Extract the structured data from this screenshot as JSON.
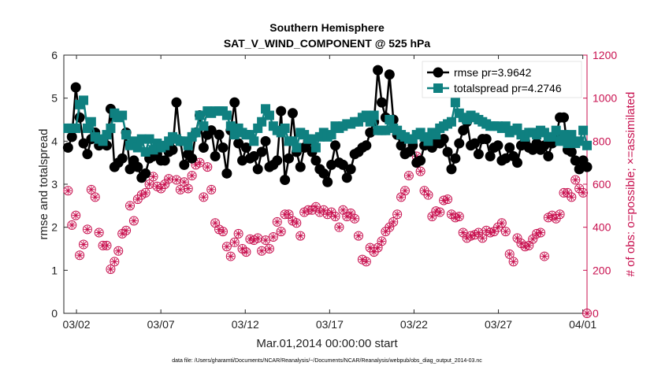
{
  "chart_data": {
    "type": "line",
    "title": "Southern Hemisphere",
    "subtitle": "SAT_V_WIND_COMPONENT @ 525 hPa",
    "xlabel": "Mar.01,2014 00:00:00 start",
    "ylabel": "rmse and totalspread",
    "y2label": "# of obs: o=possible; ×=assimilated",
    "footnote": "data file: /Users/gharamti/Documents/NCAR/Reanalysis/~/Documents/NCAR/Reanalysis/webpub/obs_diag_output_2014-03.nc",
    "xlim": [
      1.25,
      32.25
    ],
    "ylim": [
      0,
      6
    ],
    "y2lim": [
      0,
      1200
    ],
    "xticks": [
      {
        "x": 2,
        "label": "03/02"
      },
      {
        "x": 7,
        "label": "03/07"
      },
      {
        "x": 12,
        "label": "03/12"
      },
      {
        "x": 17,
        "label": "03/17"
      },
      {
        "x": 22,
        "label": "03/22"
      },
      {
        "x": 27,
        "label": "03/27"
      },
      {
        "x": 32,
        "label": "04/01"
      }
    ],
    "yticks": [
      "0",
      "1",
      "2",
      "3",
      "4",
      "5",
      "6"
    ],
    "y2ticks": [
      "0",
      "200",
      "400",
      "600",
      "800",
      "1000",
      "1200"
    ],
    "legend": {
      "position": "top-right",
      "entries": [
        "rmse pr=3.9642",
        "totalspread pr=4.2746"
      ]
    },
    "colors": {
      "rmse": "#000000",
      "totalspread": "#0f8080",
      "obs": "#c8104f"
    },
    "series": [
      {
        "name": "rmse",
        "values": [
          3.85,
          4.1,
          5.25,
          4.55,
          3.95,
          3.7,
          4.05,
          4.2,
          3.9,
          3.95,
          3.9,
          4.75,
          3.4,
          3.5,
          3.6,
          4.2,
          3.35,
          3.55,
          3.4,
          3.15,
          3.25,
          3.6,
          3.65,
          3.7,
          3.55,
          3.55,
          3.75,
          3.8,
          4.9,
          4.0,
          3.45,
          3.7,
          3.6,
          4.2,
          4.6,
          3.85,
          4.15,
          4.25,
          3.65,
          4.15,
          3.85,
          3.25,
          4.25,
          4.9,
          3.95,
          3.55,
          3.85,
          3.6,
          3.65,
          3.35,
          3.75,
          4.0,
          3.4,
          3.45,
          3.55,
          4.7,
          3.1,
          3.6,
          4.65,
          3.75,
          3.4,
          3.85,
          4.0,
          3.75,
          3.55,
          3.35,
          3.25,
          3.05,
          3.45,
          3.9,
          3.5,
          3.45,
          3.15,
          3.35,
          3.7,
          3.75,
          3.85,
          3.9,
          4.2,
          4.45,
          5.65,
          4.9,
          4.55,
          5.55,
          4.5,
          4.15,
          3.9,
          3.7,
          3.75,
          3.9,
          3.5,
          3.55,
          3.9,
          4.05,
          3.85,
          3.95,
          3.95,
          4.05,
          3.75,
          3.35,
          3.6,
          3.95,
          4.25,
          4.45,
          3.9,
          3.95,
          3.7,
          4.05,
          4.05,
          3.65,
          3.85,
          3.9,
          3.55,
          3.6,
          3.85,
          3.65,
          3.5,
          3.9,
          4.0,
          3.85,
          3.8,
          3.95,
          3.8,
          3.9,
          3.65,
          3.95,
          4.1,
          4.55,
          4.55,
          3.8,
          3.75,
          3.55,
          3.35,
          3.55,
          3.4
        ]
      },
      {
        "name": "totalspread",
        "values": [
          4.3,
          4.3,
          4.3,
          4.85,
          4.95,
          4.3,
          4.45,
          4.1,
          4.05,
          4.0,
          4.15,
          4.3,
          4.65,
          4.55,
          4.6,
          4.15,
          3.9,
          4.0,
          3.85,
          4.05,
          3.75,
          4.05,
          3.8,
          3.95,
          3.85,
          3.9,
          4.0,
          4.1,
          4.05,
          4.0,
          4.0,
          3.9,
          4.1,
          4.2,
          4.6,
          4.35,
          4.7,
          4.65,
          4.7,
          4.7,
          4.7,
          4.6,
          4.35,
          4.15,
          4.3,
          4.2,
          4.15,
          4.15,
          4.0,
          4.3,
          4.45,
          4.75,
          4.6,
          4.35,
          4.25,
          4.2,
          4.3,
          4.0,
          4.0,
          3.85,
          4.2,
          4.15,
          4.05,
          4.05,
          3.85,
          4.1,
          4.2,
          4.1,
          4.15,
          4.35,
          4.3,
          4.35,
          4.4,
          4.4,
          4.45,
          4.45,
          4.55,
          4.6,
          4.45,
          4.6,
          4.25,
          4.25,
          4.25,
          4.5,
          4.3,
          4.25,
          4.15,
          4.1,
          4.05,
          4.05,
          4.15,
          4.2,
          4.1,
          4.0,
          4.2,
          4.15,
          4.3,
          4.35,
          4.4,
          4.45,
          4.9,
          4.65,
          4.55,
          4.5,
          4.6,
          4.55,
          4.5,
          4.45,
          4.4,
          4.35,
          4.35,
          4.35,
          4.3,
          4.35,
          4.2,
          4.25,
          4.3,
          4.15,
          4.1,
          4.2,
          4.2,
          4.15,
          4.25,
          4.2,
          4.1,
          4.1,
          4.25,
          4.0,
          4.15,
          3.95,
          4.15,
          3.95,
          4.0,
          4.25,
          3.9
        ]
      },
      {
        "name": "possible_obs",
        "values": [
          570,
          410,
          455,
          270,
          320,
          390,
          575,
          540,
          375,
          315,
          315,
          205,
          240,
          290,
          370,
          385,
          500,
          430,
          530,
          550,
          560,
          600,
          635,
          590,
          580,
          600,
          625,
          820,
          620,
          575,
          610,
          580,
          640,
          690,
          700,
          540,
          680,
          575,
          420,
          390,
          380,
          310,
          265,
          330,
          370,
          300,
          285,
          345,
          340,
          350,
          290,
          340,
          300,
          355,
          425,
          380,
          460,
          460,
          430,
          420,
          360,
          470,
          480,
          480,
          495,
          470,
          480,
          460,
          470,
          450,
          400,
          480,
          450,
          465,
          440,
          360,
          250,
          240,
          305,
          285,
          305,
          335,
          380,
          400,
          425,
          460,
          540,
          570,
          640,
          790,
          730,
          660,
          570,
          550,
          450,
          475,
          470,
          525,
          530,
          460,
          445,
          450,
          375,
          350,
          360,
          365,
          375,
          350,
          385,
          375,
          380,
          400,
          420,
          380,
          275,
          240,
          350,
          325,
          310,
          315,
          345,
          370,
          375,
          265,
          445,
          455,
          440,
          460,
          560,
          560,
          540,
          620,
          580,
          560,
          0
        ]
      },
      {
        "name": "assimilated_obs",
        "values": [
          570,
          410,
          455,
          270,
          320,
          390,
          575,
          540,
          375,
          315,
          315,
          205,
          240,
          290,
          370,
          385,
          500,
          430,
          530,
          550,
          560,
          600,
          635,
          590,
          580,
          600,
          625,
          820,
          620,
          575,
          610,
          580,
          640,
          690,
          700,
          540,
          680,
          575,
          420,
          390,
          380,
          310,
          265,
          330,
          370,
          300,
          285,
          345,
          340,
          350,
          290,
          340,
          300,
          355,
          425,
          380,
          460,
          460,
          430,
          420,
          360,
          470,
          480,
          480,
          495,
          470,
          480,
          460,
          470,
          450,
          400,
          480,
          450,
          465,
          440,
          360,
          250,
          240,
          305,
          285,
          305,
          335,
          380,
          400,
          425,
          460,
          540,
          570,
          640,
          790,
          730,
          660,
          570,
          550,
          450,
          475,
          470,
          525,
          530,
          460,
          445,
          450,
          375,
          350,
          360,
          365,
          375,
          350,
          385,
          375,
          380,
          400,
          420,
          380,
          275,
          240,
          350,
          325,
          310,
          315,
          345,
          370,
          375,
          265,
          445,
          455,
          440,
          460,
          560,
          560,
          540,
          620,
          580,
          560,
          0
        ]
      }
    ]
  }
}
